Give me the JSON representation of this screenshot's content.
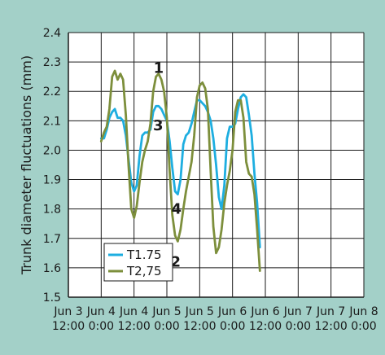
{
  "chart_data": {
    "type": "line",
    "title": "",
    "ylabel": "Trunk diameter fluctuations (mm)",
    "ylim": [
      1.5,
      2.4
    ],
    "yticks": [
      "1.5",
      "1.6",
      "1.7",
      "1.8",
      "1.9",
      "2.0",
      "2.1",
      "2.2",
      "2.3",
      "2.4"
    ],
    "xticks": [
      {
        "x": 0,
        "l1": "Jun 3",
        "l2": "12:00"
      },
      {
        "x": 12,
        "l1": "Jun 4",
        "l2": "0:00"
      },
      {
        "x": 24,
        "l1": "Jun 4",
        "l2": "12:00"
      },
      {
        "x": 36,
        "l1": "Jun 5",
        "l2": "0:00"
      },
      {
        "x": 48,
        "l1": "Jun 5",
        "l2": "12:00"
      },
      {
        "x": 60,
        "l1": "Jun 6",
        "l2": "0:00"
      },
      {
        "x": 72,
        "l1": "Jun 6",
        "l2": "12:00"
      },
      {
        "x": 84,
        "l1": "Jun 7",
        "l2": "0:00"
      },
      {
        "x": 96,
        "l1": "Jun 7",
        "l2": "12:00"
      },
      {
        "x": 108,
        "l1": "Jun 8",
        "l2": "0:00"
      }
    ],
    "xlim": [
      0,
      108
    ],
    "grid": true,
    "legend": "bottom-left",
    "series": [
      {
        "name": "T1.75",
        "color": "#1eaee0",
        "points": [
          [
            12,
            2.04
          ],
          [
            13,
            2.04
          ],
          [
            14,
            2.07
          ],
          [
            15,
            2.11
          ],
          [
            16,
            2.13
          ],
          [
            17,
            2.14
          ],
          [
            18,
            2.11
          ],
          [
            19,
            2.11
          ],
          [
            20,
            2.1
          ],
          [
            21,
            2.05
          ],
          [
            22,
            1.97
          ],
          [
            23,
            1.89
          ],
          [
            24,
            1.86
          ],
          [
            25,
            1.88
          ],
          [
            26,
            1.98
          ],
          [
            27,
            2.05
          ],
          [
            28,
            2.06
          ],
          [
            29,
            2.06
          ],
          [
            30,
            2.07
          ],
          [
            31,
            2.13
          ],
          [
            32,
            2.15
          ],
          [
            33,
            2.15
          ],
          [
            34,
            2.14
          ],
          [
            35,
            2.12
          ],
          [
            36,
            2.1
          ],
          [
            37,
            2.03
          ],
          [
            38,
            1.94
          ],
          [
            39,
            1.86
          ],
          [
            40,
            1.85
          ],
          [
            41,
            1.9
          ],
          [
            42,
            2.02
          ],
          [
            43,
            2.05
          ],
          [
            44,
            2.06
          ],
          [
            45,
            2.09
          ],
          [
            46,
            2.13
          ],
          [
            47,
            2.17
          ],
          [
            48,
            2.17
          ],
          [
            49,
            2.16
          ],
          [
            50,
            2.15
          ],
          [
            51,
            2.13
          ],
          [
            52,
            2.1
          ],
          [
            53,
            2.04
          ],
          [
            54,
            1.95
          ],
          [
            55,
            1.84
          ],
          [
            56,
            1.8
          ],
          [
            57,
            1.88
          ],
          [
            58,
            2.04
          ],
          [
            59,
            2.08
          ],
          [
            60,
            2.08
          ],
          [
            61,
            2.09
          ],
          [
            62,
            2.14
          ],
          [
            63,
            2.18
          ],
          [
            64,
            2.19
          ],
          [
            65,
            2.18
          ],
          [
            66,
            2.12
          ],
          [
            67,
            2.05
          ],
          [
            68,
            1.92
          ],
          [
            69,
            1.82
          ],
          [
            70,
            1.67
          ]
        ]
      },
      {
        "name": "T2,75",
        "color": "#7d8f3c",
        "points": [
          [
            12,
            2.03
          ],
          [
            13,
            2.06
          ],
          [
            14,
            2.08
          ],
          [
            15,
            2.14
          ],
          [
            16,
            2.25
          ],
          [
            17,
            2.27
          ],
          [
            18,
            2.24
          ],
          [
            19,
            2.26
          ],
          [
            20,
            2.24
          ],
          [
            21,
            2.12
          ],
          [
            22,
            1.95
          ],
          [
            23,
            1.8
          ],
          [
            24,
            1.77
          ],
          [
            25,
            1.81
          ],
          [
            26,
            1.89
          ],
          [
            27,
            1.96
          ],
          [
            28,
            2.0
          ],
          [
            29,
            2.03
          ],
          [
            30,
            2.09
          ],
          [
            31,
            2.2
          ],
          [
            32,
            2.25
          ],
          [
            33,
            2.26
          ],
          [
            34,
            2.24
          ],
          [
            35,
            2.2
          ],
          [
            36,
            2.11
          ],
          [
            37,
            1.93
          ],
          [
            38,
            1.78
          ],
          [
            39,
            1.71
          ],
          [
            40,
            1.69
          ],
          [
            41,
            1.73
          ],
          [
            42,
            1.8
          ],
          [
            43,
            1.86
          ],
          [
            44,
            1.91
          ],
          [
            45,
            1.96
          ],
          [
            46,
            2.05
          ],
          [
            47,
            2.18
          ],
          [
            48,
            2.22
          ],
          [
            49,
            2.23
          ],
          [
            50,
            2.21
          ],
          [
            51,
            2.14
          ],
          [
            52,
            1.93
          ],
          [
            53,
            1.74
          ],
          [
            54,
            1.65
          ],
          [
            55,
            1.67
          ],
          [
            56,
            1.73
          ],
          [
            57,
            1.82
          ],
          [
            58,
            1.88
          ],
          [
            59,
            1.93
          ],
          [
            60,
            2.0
          ],
          [
            61,
            2.13
          ],
          [
            62,
            2.17
          ],
          [
            63,
            2.17
          ],
          [
            64,
            2.11
          ],
          [
            65,
            1.96
          ],
          [
            66,
            1.92
          ],
          [
            67,
            1.91
          ],
          [
            68,
            1.85
          ],
          [
            69,
            1.73
          ],
          [
            70,
            1.59
          ]
        ]
      }
    ],
    "annotations": [
      {
        "text": "1",
        "x": 33,
        "y": 2.28
      },
      {
        "text": "2",
        "x": 39.2,
        "y": 1.62
      },
      {
        "text": "3",
        "x": 32.8,
        "y": 2.085
      },
      {
        "text": "4",
        "x": 39.5,
        "y": 1.8
      }
    ]
  }
}
